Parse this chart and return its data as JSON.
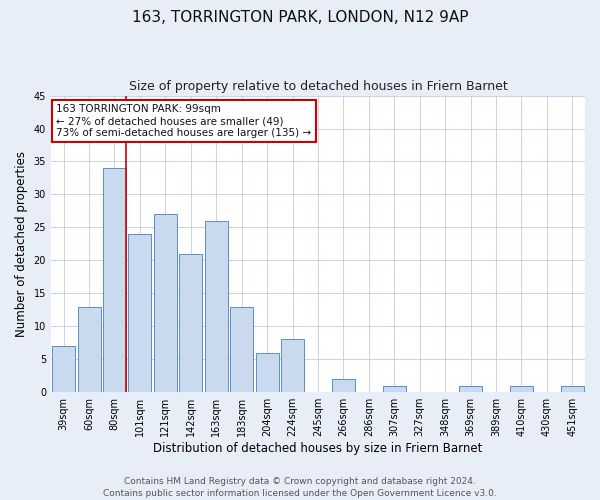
{
  "title": "163, TORRINGTON PARK, LONDON, N12 9AP",
  "subtitle": "Size of property relative to detached houses in Friern Barnet",
  "xlabel": "Distribution of detached houses by size in Friern Barnet",
  "ylabel": "Number of detached properties",
  "bin_labels": [
    "39sqm",
    "60sqm",
    "80sqm",
    "101sqm",
    "121sqm",
    "142sqm",
    "163sqm",
    "183sqm",
    "204sqm",
    "224sqm",
    "245sqm",
    "266sqm",
    "286sqm",
    "307sqm",
    "327sqm",
    "348sqm",
    "369sqm",
    "389sqm",
    "410sqm",
    "430sqm",
    "451sqm"
  ],
  "bar_heights": [
    7,
    13,
    34,
    24,
    27,
    21,
    26,
    13,
    6,
    8,
    0,
    2,
    0,
    1,
    0,
    0,
    1,
    0,
    1,
    0,
    1
  ],
  "bar_color": "#c9d9ee",
  "bar_edge_color": "#5b8cc8",
  "ylim": [
    0,
    45
  ],
  "yticks": [
    0,
    5,
    10,
    15,
    20,
    25,
    30,
    35,
    40,
    45
  ],
  "marker_line_color": "#cc0000",
  "annotation_text": "163 TORRINGTON PARK: 99sqm\n← 27% of detached houses are smaller (49)\n73% of semi-detached houses are larger (135) →",
  "annotation_box_color": "#ffffff",
  "annotation_box_edge_color": "#cc0000",
  "footer_line1": "Contains HM Land Registry data © Crown copyright and database right 2024.",
  "footer_line2": "Contains public sector information licensed under the Open Government Licence v3.0.",
  "background_color": "#e8eef8",
  "plot_background_color": "#ffffff",
  "grid_color": "#c0cce0",
  "title_fontsize": 11,
  "subtitle_fontsize": 9,
  "axis_label_fontsize": 8.5,
  "tick_fontsize": 7,
  "footer_fontsize": 6.5
}
